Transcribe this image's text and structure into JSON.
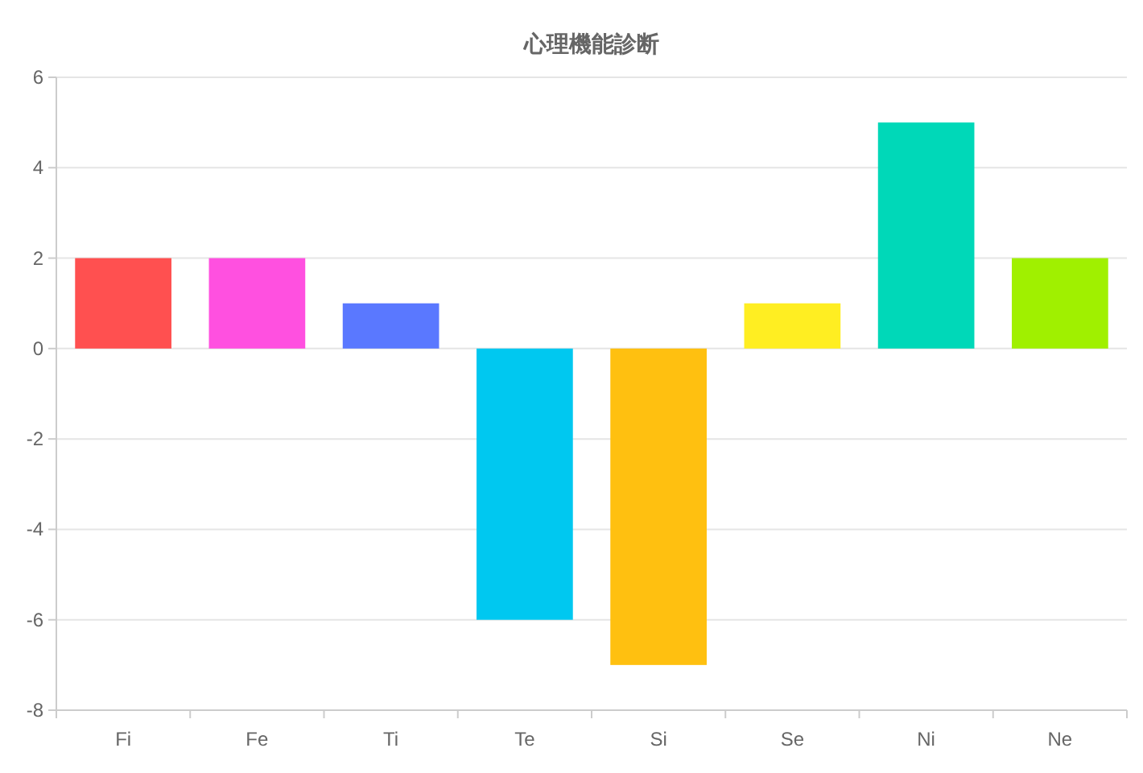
{
  "chart_data": {
    "type": "bar",
    "title": "心理機能診断",
    "categories": [
      "Fi",
      "Fe",
      "Ti",
      "Te",
      "Si",
      "Se",
      "Ni",
      "Ne"
    ],
    "values": [
      2,
      2,
      1,
      -6,
      -7,
      1,
      5,
      2
    ],
    "colors": [
      "#ff5050",
      "#ff50e0",
      "#5a78ff",
      "#00c8f0",
      "#ffc010",
      "#ffee22",
      "#00d8b8",
      "#a0f000"
    ],
    "ylim": [
      -8,
      6
    ],
    "yticks": [
      -8,
      -6,
      -4,
      -2,
      0,
      2,
      4,
      6
    ],
    "grid": "y"
  }
}
